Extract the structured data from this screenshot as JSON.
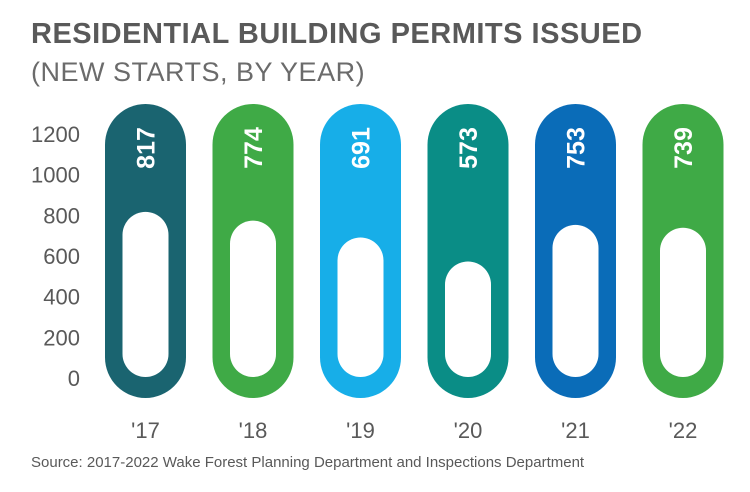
{
  "title": "RESIDENTIAL BUILDING PERMITS ISSUED",
  "subtitle": "(NEW STARTS, BY YEAR)",
  "source": "Source: 2017-2022 Wake Forest Planning Department and Inspections Department",
  "chart_data": {
    "type": "bar",
    "categories": [
      "'17",
      "'18",
      "'19",
      "'20",
      "'21",
      "'22"
    ],
    "values": [
      817,
      774,
      691,
      573,
      753,
      739
    ],
    "colors": [
      "#1a6470",
      "#3faa46",
      "#17aee8",
      "#0a8d86",
      "#0a6cb8",
      "#3faa46"
    ],
    "yticks": [
      0,
      200,
      400,
      600,
      800,
      1000,
      1200
    ],
    "ylim": [
      0,
      1200
    ],
    "grid": false,
    "legend": "none"
  }
}
